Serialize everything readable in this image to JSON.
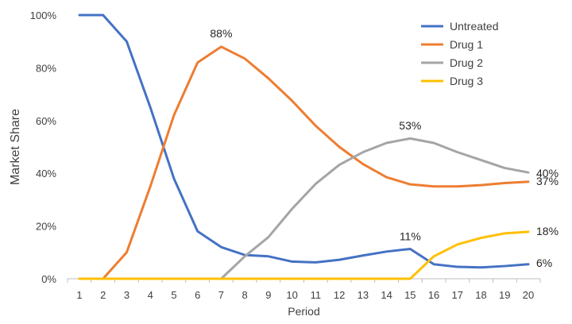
{
  "chart_data": {
    "type": "line",
    "title": "",
    "xlabel": "Period",
    "ylabel": "Market Share",
    "x": [
      1,
      2,
      3,
      4,
      5,
      6,
      7,
      8,
      9,
      10,
      11,
      12,
      13,
      14,
      15,
      16,
      17,
      18,
      19,
      20
    ],
    "ylim": [
      0,
      100
    ],
    "yticks": [
      "0%",
      "20%",
      "40%",
      "60%",
      "80%",
      "100%"
    ],
    "ytick_values": [
      0,
      20,
      40,
      60,
      80,
      100
    ],
    "grid": false,
    "legend_position": "top-right",
    "series": [
      {
        "name": "Untreated",
        "color": "#4472C4",
        "values": [
          100,
          100,
          90,
          65,
          38,
          18,
          12,
          9,
          8.5,
          6.5,
          6.2,
          7.2,
          8.8,
          10.3,
          11.3,
          5.5,
          4.5,
          4.3,
          4.8,
          5.5
        ]
      },
      {
        "name": "Drug 1",
        "color": "#ED7D31",
        "values": [
          0,
          0,
          10,
          35,
          62,
          82,
          88,
          83.5,
          76,
          67.5,
          58,
          50,
          43.5,
          38.5,
          35.8,
          35,
          35,
          35.5,
          36.3,
          36.8
        ]
      },
      {
        "name": "Drug 2",
        "color": "#A5A5A5",
        "values": [
          0,
          0,
          0,
          0,
          0,
          0,
          0,
          8.5,
          15.8,
          26.5,
          36,
          43.2,
          48,
          51.5,
          53.2,
          51.5,
          48,
          45,
          42,
          40.3
        ]
      },
      {
        "name": "Drug 3",
        "color": "#FFC000",
        "values": [
          0,
          0,
          0,
          0,
          0,
          0,
          0,
          0,
          0,
          0,
          0,
          0,
          0,
          0,
          0,
          8.5,
          13,
          15.5,
          17.2,
          17.8
        ]
      }
    ],
    "annotations": [
      {
        "text": "88%",
        "series": "Drug 1",
        "x": 7,
        "y": 88
      },
      {
        "text": "53%",
        "series": "Drug 2",
        "x": 15,
        "y": 53
      },
      {
        "text": "11%",
        "series": "Untreated",
        "x": 15,
        "y": 11
      },
      {
        "text": "40%",
        "series": "Drug 2",
        "x": 20,
        "y": 40
      },
      {
        "text": "37%",
        "series": "Drug 1",
        "x": 20,
        "y": 37
      },
      {
        "text": "18%",
        "series": "Drug 3",
        "x": 20,
        "y": 18
      },
      {
        "text": "6%",
        "series": "Untreated",
        "x": 20,
        "y": 6
      }
    ]
  }
}
